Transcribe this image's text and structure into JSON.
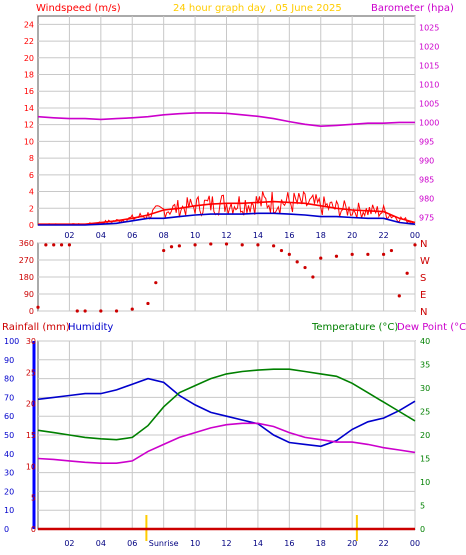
{
  "header": {
    "left_title": "Windspeed (m/s)",
    "center_title": "24 hour graph day , 05 June 2025",
    "right_title": "Barometer (hpa)"
  },
  "colors": {
    "background": "#ffffff",
    "grid": "#c8c8c8",
    "frame": "#555555",
    "windspeed": "#ff0000",
    "windspeed_avg": "#0000cc",
    "barometer": "#cc00cc",
    "winddir": "#cc0000",
    "rainfall": "#cc0000",
    "humidity": "#0000cc",
    "temperature": "#008000",
    "dewpoint": "#cc00cc",
    "title": "#ffcc00",
    "sun_marker": "#ffcc00"
  },
  "bottom_header": {
    "rainfall_label": "Rainfall (mm)",
    "humidity_label": "Humidity",
    "temperature_label": "Temperature (°C)",
    "dewpoint_label": "Dew Point (°C)"
  },
  "x_ticks": [
    "02",
    "04",
    "06",
    "08",
    "10",
    "12",
    "14",
    "16",
    "18",
    "20",
    "22",
    "00"
  ],
  "x_ticks_bottom": [
    "02",
    "04",
    "06",
    "Sunrise",
    "10",
    "12",
    "14",
    "16",
    "18",
    "20",
    "22",
    "00"
  ],
  "chart_data": [
    {
      "type": "line",
      "title": "24 hour graph day , 05 June 2025",
      "x_unit": "hour",
      "xlim": [
        0,
        24
      ],
      "y_left": {
        "label": "Windspeed (m/s)",
        "ylim": [
          0,
          25
        ],
        "ticks": [
          0,
          2,
          4,
          6,
          8,
          10,
          12,
          14,
          16,
          18,
          20,
          22,
          24
        ]
      },
      "y_right": {
        "label": "Barometer (hpa)",
        "ylim": [
          973,
          1028
        ],
        "ticks": [
          975,
          980,
          985,
          990,
          995,
          1000,
          1005,
          1010,
          1015,
          1020,
          1025
        ]
      },
      "series": [
        {
          "axis": "right",
          "x": [
            0,
            1,
            2,
            3,
            4,
            5,
            6,
            7,
            8,
            9,
            10,
            11,
            12,
            13,
            14,
            15,
            16,
            17,
            18,
            19,
            20,
            21,
            22,
            23,
            24
          ],
          "values": [
            1001.5,
            1001.2,
            1001.0,
            1001.0,
            1000.8,
            1001.0,
            1001.2,
            1001.5,
            1002.0,
            1002.3,
            1002.5,
            1002.5,
            1002.4,
            1002.0,
            1001.6,
            1001.0,
            1000.2,
            999.5,
            999.0,
            999.2,
            999.5,
            999.8,
            999.8,
            1000.0,
            1000.0
          ]
        },
        {
          "axis": "left",
          "x": [
            0,
            1,
            2,
            3,
            4,
            5,
            6,
            7,
            8,
            9,
            10,
            11,
            12,
            13,
            14,
            15,
            16,
            17,
            18,
            19,
            20,
            21,
            22,
            23,
            24
          ],
          "values": [
            0.1,
            0.1,
            0.1,
            0.1,
            0.3,
            0.5,
            0.8,
            1.2,
            1.8,
            2.0,
            2.3,
            2.5,
            2.6,
            2.6,
            2.7,
            2.8,
            2.7,
            2.6,
            2.3,
            2.0,
            1.8,
            1.7,
            1.6,
            0.8,
            0.3
          ]
        },
        {
          "axis": "left",
          "x": [
            0,
            1,
            2,
            3,
            4,
            5,
            6,
            7,
            8,
            9,
            10,
            11,
            12,
            13,
            14,
            15,
            16,
            17,
            18,
            19,
            20,
            21,
            22,
            23,
            24
          ],
          "values": [
            0.0,
            0.0,
            0.0,
            0.0,
            0.1,
            0.2,
            0.5,
            0.8,
            0.8,
            1.0,
            1.2,
            1.3,
            1.3,
            1.3,
            1.4,
            1.4,
            1.3,
            1.2,
            1.0,
            1.0,
            0.9,
            0.8,
            0.8,
            0.3,
            0.1
          ]
        }
      ]
    },
    {
      "type": "scatter",
      "x_unit": "hour",
      "xlim": [
        0,
        24
      ],
      "y_left": {
        "ylim": [
          0,
          360
        ],
        "ticks": [
          0,
          90,
          180,
          270,
          360
        ]
      },
      "y_right_ticks": [
        "N",
        "W",
        "S",
        "E",
        "N"
      ],
      "series": [
        {
          "x": [
            0,
            0.5,
            1,
            1.5,
            2,
            2.5,
            3,
            4,
            5,
            6,
            7,
            7.5,
            8,
            8.5,
            9,
            10,
            11,
            12,
            13,
            14,
            15,
            15.5,
            16,
            16.5,
            17,
            17.5,
            18,
            19,
            20,
            21,
            22,
            22.5,
            23,
            23.5,
            24
          ],
          "values": [
            20,
            350,
            350,
            350,
            350,
            0,
            0,
            0,
            0,
            10,
            40,
            150,
            320,
            340,
            345,
            350,
            355,
            355,
            350,
            350,
            345,
            320,
            300,
            260,
            230,
            180,
            280,
            290,
            300,
            300,
            300,
            320,
            80,
            200,
            350
          ]
        }
      ]
    },
    {
      "type": "line",
      "x_unit": "hour",
      "xlim": [
        0,
        24
      ],
      "y_left_outer": {
        "label": "Humidity",
        "ylim": [
          0,
          100
        ],
        "ticks": [
          0,
          10,
          20,
          30,
          40,
          50,
          60,
          70,
          80,
          90,
          100
        ]
      },
      "y_left_inner": {
        "label": "Rainfall (mm)",
        "ylim": [
          0,
          30
        ],
        "ticks": [
          0,
          5,
          10,
          15,
          20,
          25,
          30
        ]
      },
      "y_right": {
        "label": "Temperature (°C)",
        "ylim": [
          0,
          40
        ],
        "ticks": [
          0,
          5,
          10,
          15,
          20,
          25,
          30,
          35,
          40
        ]
      },
      "series": [
        {
          "x": [
            0,
            1,
            2,
            3,
            4,
            5,
            6,
            7,
            8,
            9,
            10,
            11,
            12,
            13,
            14,
            15,
            16,
            17,
            18,
            19,
            20,
            21,
            22,
            23,
            24
          ],
          "values": [
            69,
            70,
            71,
            72,
            72,
            74,
            77,
            80,
            78,
            71,
            66,
            62,
            60,
            58,
            56,
            50,
            46,
            45,
            44,
            47,
            53,
            57,
            59,
            63,
            68
          ]
        },
        {
          "x": [
            0,
            1,
            2,
            3,
            4,
            5,
            6,
            7,
            8,
            9,
            10,
            11,
            12,
            13,
            14,
            15,
            16,
            17,
            18,
            19,
            20,
            21,
            22,
            23,
            24
          ],
          "values": [
            21,
            20.5,
            20,
            19.5,
            19.2,
            19,
            19.5,
            22,
            26,
            29,
            30.5,
            32,
            33,
            33.5,
            33.8,
            34,
            34,
            33.5,
            33,
            32.5,
            31,
            29,
            27,
            25,
            23
          ]
        },
        {
          "x": [
            0,
            1,
            2,
            3,
            4,
            5,
            6,
            7,
            8,
            9,
            10,
            11,
            12,
            13,
            14,
            15,
            16,
            17,
            18,
            19,
            20,
            21,
            22,
            23,
            24
          ],
          "values": [
            15,
            14.8,
            14.5,
            14.2,
            14,
            14,
            14.5,
            16.5,
            18,
            19.5,
            20.5,
            21.5,
            22.2,
            22.5,
            22.5,
            21.8,
            20.5,
            19.5,
            19,
            18.5,
            18.5,
            18,
            17.3,
            16.8,
            16.3
          ]
        },
        {
          "x": [
            0,
            24
          ],
          "values": [
            0,
            0
          ]
        }
      ],
      "markers": [
        {
          "label": "Sunrise",
          "x": 6.9
        },
        {
          "label": "",
          "x": 20.3
        }
      ]
    }
  ]
}
